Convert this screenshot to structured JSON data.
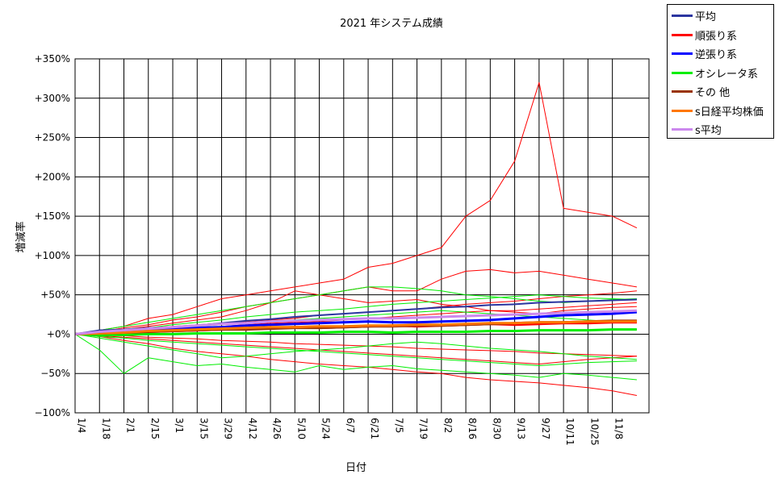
{
  "chart_data": {
    "type": "line",
    "title": "2021 年システム成績",
    "xlabel": "日付",
    "ylabel": "増減率",
    "ylim": [
      -100,
      350
    ],
    "yticks": [
      350,
      300,
      250,
      200,
      150,
      100,
      50,
      0,
      -50,
      -100
    ],
    "ytick_labels": [
      "+350%",
      "+300%",
      "+250%",
      "+200%",
      "+150%",
      "+100%",
      "+50%",
      "+0%",
      "−50%",
      "−100%"
    ],
    "x_tick_labels": [
      "1/4",
      "1/18",
      "2/1",
      "2/15",
      "3/1",
      "3/15",
      "3/29",
      "4/12",
      "4/26",
      "5/10",
      "5/24",
      "6/7",
      "6/21",
      "7/5",
      "7/19",
      "8/2",
      "8/16",
      "8/30",
      "9/13",
      "9/27",
      "10/11",
      "10/25",
      "11/8"
    ],
    "grid": true,
    "legend_position": "top-right outside",
    "x_weeks": [
      0,
      2,
      4,
      6,
      8,
      10,
      12,
      14,
      16,
      18,
      20,
      22,
      24,
      26,
      28,
      30,
      32,
      34,
      36,
      38,
      40,
      42,
      44,
      46
    ],
    "series": [
      {
        "name": "平均",
        "color": "#2b35a0",
        "width": 2,
        "values": [
          0,
          5,
          6,
          8,
          9,
          11,
          14,
          17,
          19,
          22,
          24,
          26,
          28,
          30,
          32,
          34,
          35,
          37,
          38,
          40,
          41,
          42,
          43,
          44
        ]
      },
      {
        "name": "順張り系",
        "color": "#ff0000",
        "width": 3,
        "values": [
          0,
          1,
          2,
          3,
          4,
          5,
          6,
          7,
          8,
          9,
          8,
          9,
          10,
          11,
          10,
          11,
          12,
          13,
          12,
          13,
          14,
          14,
          15,
          15
        ]
      },
      {
        "name": "逆張り系",
        "color": "#0000ff",
        "width": 3,
        "values": [
          0,
          2,
          4,
          5,
          7,
          8,
          9,
          11,
          12,
          13,
          14,
          15,
          16,
          15,
          15,
          16,
          17,
          18,
          20,
          22,
          24,
          25,
          26,
          28
        ]
      },
      {
        "name": "オシレータ系",
        "color": "#00ee00",
        "width": 3,
        "values": [
          0,
          -1,
          -1,
          0,
          0,
          1,
          1,
          1,
          2,
          2,
          2,
          3,
          3,
          2,
          3,
          3,
          3,
          4,
          4,
          5,
          5,
          5,
          6,
          6
        ]
      },
      {
        "name": "その 他",
        "color": "#993300",
        "width": 3,
        "values": [
          0,
          1,
          2,
          3,
          4,
          5,
          6,
          6,
          7,
          8,
          8,
          9,
          10,
          10,
          11,
          11,
          12,
          13,
          14,
          15,
          15,
          16,
          17,
          17
        ]
      },
      {
        "name": "s日経平均株価",
        "color": "#ff7700",
        "width": 3,
        "values": [
          0,
          1,
          2,
          4,
          5,
          6,
          7,
          8,
          9,
          9,
          10,
          10,
          11,
          11,
          12,
          12,
          13,
          14,
          14,
          15,
          15,
          16,
          16,
          16
        ]
      },
      {
        "name": "s平均",
        "color": "#cc88ee",
        "width": 3,
        "values": [
          0,
          3,
          5,
          7,
          9,
          11,
          13,
          14,
          16,
          17,
          18,
          19,
          20,
          20,
          21,
          22,
          23,
          24,
          25,
          26,
          27,
          28,
          29,
          30
        ]
      },
      {
        "name": "",
        "color": "#ff0000",
        "width": 1,
        "values": [
          0,
          5,
          10,
          20,
          25,
          35,
          45,
          50,
          55,
          60,
          65,
          70,
          85,
          90,
          100,
          110,
          150,
          170,
          220,
          320,
          160,
          155,
          150,
          135
        ]
      },
      {
        "name": "",
        "color": "#ff0000",
        "width": 1,
        "values": [
          0,
          3,
          8,
          12,
          18,
          22,
          28,
          35,
          40,
          45,
          50,
          55,
          60,
          55,
          55,
          70,
          80,
          82,
          78,
          80,
          75,
          70,
          65,
          60
        ]
      },
      {
        "name": "",
        "color": "#ff0000",
        "width": 1,
        "values": [
          0,
          -3,
          -8,
          -12,
          -18,
          -22,
          -25,
          -28,
          -32,
          -35,
          -38,
          -40,
          -42,
          -45,
          -48,
          -50,
          -55,
          -58,
          -60,
          -62,
          -65,
          -68,
          -72,
          -78
        ]
      },
      {
        "name": "",
        "color": "#ff0000",
        "width": 1,
        "values": [
          0,
          2,
          4,
          8,
          10,
          12,
          14,
          16,
          18,
          20,
          24,
          26,
          28,
          30,
          32,
          35,
          38,
          40,
          42,
          45,
          48,
          50,
          52,
          55
        ]
      },
      {
        "name": "",
        "color": "#ff0000",
        "width": 1,
        "values": [
          0,
          -2,
          -4,
          -6,
          -8,
          -10,
          -12,
          -14,
          -16,
          -18,
          -20,
          -22,
          -24,
          -26,
          -28,
          -30,
          -32,
          -34,
          -36,
          -38,
          -35,
          -32,
          -30,
          -28
        ]
      },
      {
        "name": "",
        "color": "#ff0000",
        "width": 1,
        "values": [
          0,
          4,
          6,
          10,
          14,
          18,
          22,
          30,
          40,
          55,
          50,
          45,
          40,
          42,
          44,
          38,
          35,
          30,
          28,
          26,
          30,
          32,
          34,
          35
        ]
      },
      {
        "name": "",
        "color": "#ff0000",
        "width": 1,
        "values": [
          0,
          -1,
          -2,
          -4,
          -5,
          -6,
          -8,
          -9,
          -10,
          -12,
          -13,
          -14,
          -15,
          -16,
          -18,
          -19,
          -20,
          -21,
          -22,
          -24,
          -25,
          -26,
          -27,
          -28
        ]
      },
      {
        "name": "",
        "color": "#ff0000",
        "width": 1,
        "values": [
          0,
          1,
          3,
          5,
          6,
          8,
          10,
          12,
          14,
          15,
          16,
          18,
          20,
          22,
          24,
          26,
          28,
          30,
          30,
          32,
          34,
          36,
          38,
          40
        ]
      },
      {
        "name": "",
        "color": "#00ee00",
        "width": 1,
        "values": [
          0,
          -20,
          -50,
          -30,
          -35,
          -40,
          -38,
          -42,
          -45,
          -48,
          -40,
          -45,
          -42,
          -40,
          -44,
          -46,
          -48,
          -50,
          -52,
          -55,
          -50,
          -52,
          -55,
          -58
        ]
      },
      {
        "name": "",
        "color": "#00ee00",
        "width": 1,
        "values": [
          0,
          5,
          10,
          15,
          20,
          25,
          30,
          35,
          40,
          45,
          50,
          55,
          60,
          60,
          58,
          55,
          50,
          48,
          45,
          42,
          40,
          42,
          44,
          45
        ]
      },
      {
        "name": "",
        "color": "#00ee00",
        "width": 1,
        "values": [
          0,
          -5,
          -10,
          -15,
          -20,
          -25,
          -30,
          -28,
          -25,
          -22,
          -20,
          -18,
          -15,
          -12,
          -10,
          -12,
          -15,
          -18,
          -20,
          -22,
          -25,
          -28,
          -30,
          -32
        ]
      },
      {
        "name": "",
        "color": "#00ee00",
        "width": 1,
        "values": [
          0,
          3,
          6,
          8,
          12,
          15,
          18,
          22,
          25,
          28,
          30,
          32,
          35,
          38,
          40,
          42,
          44,
          46,
          48,
          50,
          48,
          46,
          45,
          44
        ]
      },
      {
        "name": "",
        "color": "#00ee00",
        "width": 1,
        "values": [
          0,
          -3,
          -5,
          -8,
          -10,
          -12,
          -14,
          -16,
          -18,
          -20,
          -22,
          -24,
          -26,
          -28,
          -30,
          -32,
          -34,
          -36,
          -38,
          -40,
          -38,
          -36,
          -35,
          -34
        ]
      },
      {
        "name": "",
        "color": "#00ee00",
        "width": 1,
        "values": [
          0,
          2,
          4,
          6,
          8,
          10,
          12,
          14,
          16,
          18,
          20,
          22,
          24,
          26,
          28,
          30,
          28,
          26,
          24,
          22,
          20,
          18,
          16,
          15
        ]
      }
    ]
  },
  "legend": {
    "items": [
      {
        "label": "平均",
        "color": "#2b35a0"
      },
      {
        "label": "順張り系",
        "color": "#ff0000"
      },
      {
        "label": "逆張り系",
        "color": "#0000ff"
      },
      {
        "label": "オシレータ系",
        "color": "#00ee00"
      },
      {
        "label": "その 他",
        "color": "#993300"
      },
      {
        "label": "s日経平均株価",
        "color": "#ff7700"
      },
      {
        "label": "s平均",
        "color": "#cc88ee"
      }
    ]
  }
}
